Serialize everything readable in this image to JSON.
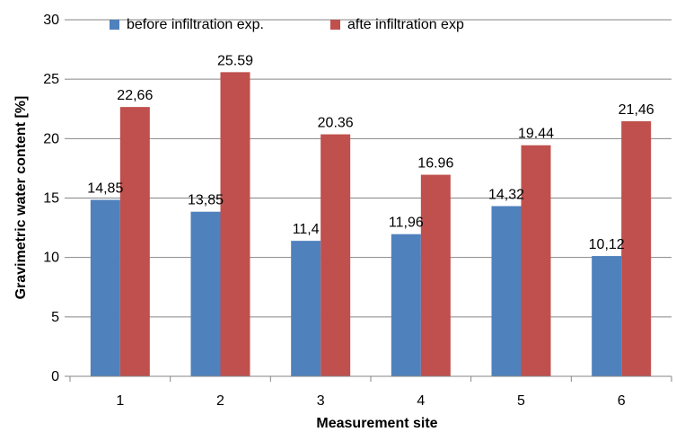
{
  "chart_data": {
    "type": "bar",
    "title": "",
    "xlabel": "Measurement site",
    "ylabel": "Gravimetric water content [%]",
    "ylim": [
      0,
      30
    ],
    "yticks": [
      0,
      5,
      10,
      15,
      20,
      25,
      30
    ],
    "categories": [
      "1",
      "2",
      "3",
      "4",
      "5",
      "6"
    ],
    "grid": "horizontal",
    "legend_position": "top",
    "series": [
      {
        "name": "before infiltration exp.",
        "color": "#4f81bd",
        "values": [
          14.85,
          13.85,
          11.4,
          11.96,
          14.32,
          10.12
        ],
        "labels": [
          "14,85",
          "13,85",
          "11,4",
          "11,96",
          "14,32",
          "10,12"
        ]
      },
      {
        "name": "afte infiltration exp",
        "color": "#c0504d",
        "values": [
          22.66,
          25.59,
          20.36,
          16.96,
          19.44,
          21.46
        ],
        "labels": [
          "22,66",
          "25.59",
          "20.36",
          "16.96",
          "19.44",
          "21,46"
        ]
      }
    ]
  }
}
